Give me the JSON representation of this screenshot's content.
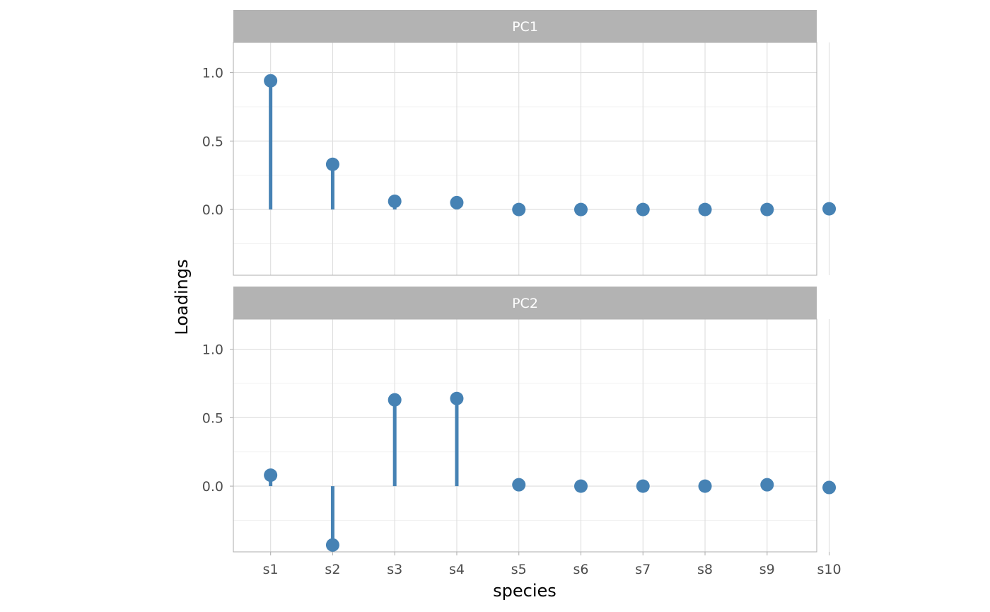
{
  "chart_data": {
    "type": "scatter",
    "subtype": "lollipop",
    "xlabel": "species",
    "ylabel": "Loadings",
    "categories": [
      "s1",
      "s2",
      "s3",
      "s4",
      "s5",
      "s6",
      "s7",
      "s8",
      "s9",
      "s10"
    ],
    "y_ticks": [
      0.0,
      0.5,
      1.0
    ],
    "y_tick_labels": [
      "0.0",
      "0.5",
      "1.0"
    ],
    "ylim": [
      -0.48,
      1.22
    ],
    "grid": true,
    "color": "#4682b4",
    "panels": [
      {
        "label": "PC1",
        "values": [
          0.94,
          0.33,
          0.06,
          0.05,
          0.0,
          0.0,
          0.0,
          0.0,
          0.0,
          0.005
        ]
      },
      {
        "label": "PC2",
        "values": [
          0.08,
          -0.43,
          0.63,
          0.64,
          0.01,
          0.0,
          0.0,
          0.0,
          0.01,
          -0.01
        ]
      }
    ]
  }
}
